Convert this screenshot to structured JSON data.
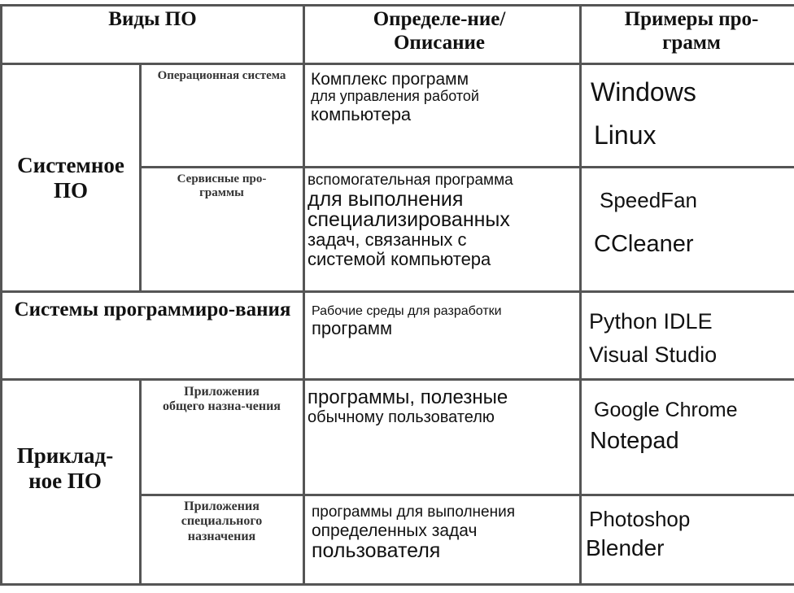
{
  "header": {
    "types": "Виды ПО",
    "definition": "Определе-ние/Описание",
    "examples": "Примеры про-грамм"
  },
  "rows": [
    {
      "group": "Системное ПО",
      "subtype": "Операционная система",
      "desc_lines": [
        "Комплекс программ",
        "для управления работой",
        "компьютера"
      ],
      "examples": [
        "Windows",
        "Linux"
      ]
    },
    {
      "group": "Системное ПО",
      "subtype": "Сервисные про-граммы",
      "desc_lines": [
        "вспомогательная программа",
        "для выполнения",
        "специализированных",
        "задач, связанных с",
        "системой компьютера"
      ],
      "examples": [
        "SpeedFan",
        "CCleaner"
      ]
    },
    {
      "group": "Системы программиро-вания",
      "subtype": "",
      "desc_lines": [
        "Рабочие среды для разработки",
        "программ"
      ],
      "examples": [
        "Python IDLE",
        "Visual Studio"
      ]
    },
    {
      "group": "Приклад-ное ПО",
      "subtype": "Приложения общего назна-чения",
      "desc_lines": [
        "программы, полезные",
        "обычному пользователю"
      ],
      "examples": [
        "Google Chrome",
        "Notepad"
      ]
    },
    {
      "group": "Приклад-ное ПО",
      "subtype": "Приложения специального назначения",
      "desc_lines": [
        "программы для выполнения",
        "определенных задач",
        "пользователя"
      ],
      "examples": [
        "Photoshop",
        "Blender"
      ]
    }
  ]
}
